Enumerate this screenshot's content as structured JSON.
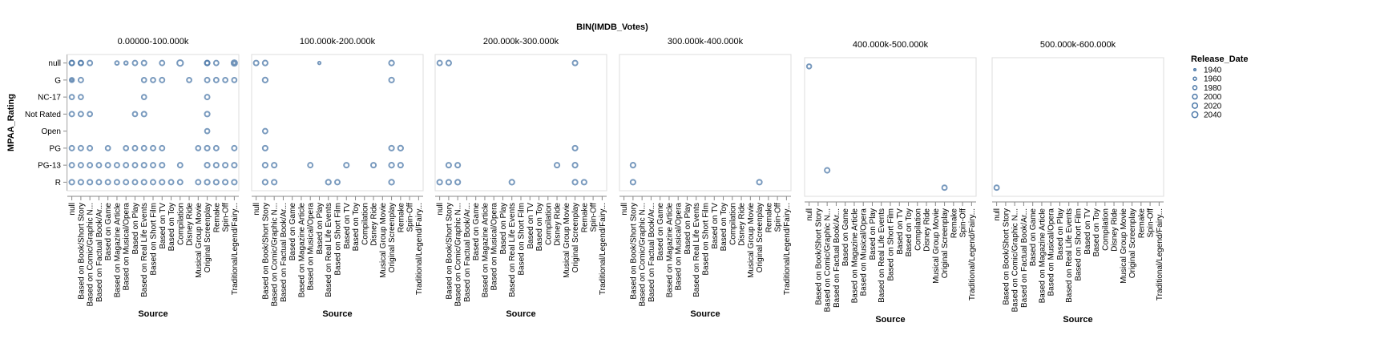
{
  "chart_data": {
    "type": "scatter",
    "column_title": "BIN(IMDB_Votes)",
    "x_title": "Source",
    "y_title": "MPAA_Rating",
    "legend": {
      "title": "Release_Date",
      "values": [
        "1940",
        "1960",
        "1980",
        "2000",
        "2020",
        "2040"
      ],
      "placement": "top-right"
    },
    "size_domain": [
      1940,
      2040
    ],
    "stroke_color": "#4c78a8",
    "ratings": [
      "null",
      "G",
      "NC-17",
      "Not Rated",
      "Open",
      "PG",
      "PG-13",
      "R"
    ],
    "sources": [
      "null",
      "Based on Book/Short Story",
      "Based on Comic/Graphic N...",
      "Based on Factual Book/Ar...",
      "Based on Game",
      "Based on Magazine Article",
      "Based on Musical/Opera",
      "Based on Play",
      "Based on Real Life Events",
      "Based on Short Film",
      "Based on TV",
      "Based on Toy",
      "Compilation",
      "Disney Ride",
      "Musical Group Movie",
      "Original Screenplay",
      "Remake",
      "Spin-Off",
      "Traditional/Legend/Fairy..."
    ],
    "facets": [
      {
        "label": "0.00000-100.000k",
        "points": [
          {
            "source": "null",
            "rating": "null",
            "date": 2008
          },
          {
            "source": "null",
            "rating": "null",
            "date": 1994
          },
          {
            "source": "Based on Book/Short Story",
            "rating": "null",
            "date": 2005
          },
          {
            "source": "Based on Book/Short Story",
            "rating": "null",
            "date": 1990
          },
          {
            "source": "Based on Comic/Graphic N...",
            "rating": "null",
            "date": 2002
          },
          {
            "source": "Based on Magazine Article",
            "rating": "null",
            "date": 1975
          },
          {
            "source": "Based on Musical/Opera",
            "rating": "null",
            "date": 1970
          },
          {
            "source": "Based on Play",
            "rating": "null",
            "date": 2000
          },
          {
            "source": "Based on Real Life Events",
            "rating": "null",
            "date": 2004
          },
          {
            "source": "Based on TV",
            "rating": "null",
            "date": 2000
          },
          {
            "source": "Compilation",
            "rating": "null",
            "date": 2040
          },
          {
            "source": "Original Screenplay",
            "rating": "null",
            "date": 2010
          },
          {
            "source": "Original Screenplay",
            "rating": "null",
            "date": 1990
          },
          {
            "source": "Remake",
            "rating": "null",
            "date": 2000
          },
          {
            "source": "Traditional/Legend/Fairy...",
            "rating": "null",
            "date": 2030
          },
          {
            "source": "Traditional/Legend/Fairy...",
            "rating": "null",
            "date": 1960
          },
          {
            "source": "null",
            "rating": "G",
            "date": 1990
          },
          {
            "source": "null",
            "rating": "G",
            "date": 1940
          },
          {
            "source": "Based on Book/Short Story",
            "rating": "G",
            "date": 2000
          },
          {
            "source": "Based on Real Life Events",
            "rating": "G",
            "date": 1995
          },
          {
            "source": "Based on Short Film",
            "rating": "G",
            "date": 1995
          },
          {
            "source": "Based on TV",
            "rating": "G",
            "date": 2000
          },
          {
            "source": "Disney Ride",
            "rating": "G",
            "date": 1995
          },
          {
            "source": "Original Screenplay",
            "rating": "G",
            "date": 2000
          },
          {
            "source": "Remake",
            "rating": "G",
            "date": 2000
          },
          {
            "source": "Spin-Off",
            "rating": "G",
            "date": 1995
          },
          {
            "source": "Traditional/Legend/Fairy...",
            "rating": "G",
            "date": 1995
          },
          {
            "source": "null",
            "rating": "NC-17",
            "date": 1995
          },
          {
            "source": "Based on Book/Short Story",
            "rating": "NC-17",
            "date": 1995
          },
          {
            "source": "Based on Real Life Events",
            "rating": "NC-17",
            "date": 1995
          },
          {
            "source": "Original Screenplay",
            "rating": "NC-17",
            "date": 2000
          },
          {
            "source": "null",
            "rating": "Not Rated",
            "date": 2000
          },
          {
            "source": "Based on Book/Short Story",
            "rating": "Not Rated",
            "date": 2000
          },
          {
            "source": "Based on Comic/Graphic N...",
            "rating": "Not Rated",
            "date": 1995
          },
          {
            "source": "Based on Play",
            "rating": "Not Rated",
            "date": 1995
          },
          {
            "source": "Based on Real Life Events",
            "rating": "Not Rated",
            "date": 2002
          },
          {
            "source": "Original Screenplay",
            "rating": "Not Rated",
            "date": 2005
          },
          {
            "source": "Original Screenplay",
            "rating": "Open",
            "date": 1995
          },
          {
            "source": "null",
            "rating": "PG",
            "date": 2000
          },
          {
            "source": "Based on Book/Short Story",
            "rating": "PG",
            "date": 2000
          },
          {
            "source": "Based on Comic/Graphic N...",
            "rating": "PG",
            "date": 2000
          },
          {
            "source": "Based on Game",
            "rating": "PG",
            "date": 1995
          },
          {
            "source": "Based on Musical/Opera",
            "rating": "PG",
            "date": 1995
          },
          {
            "source": "Based on Play",
            "rating": "PG",
            "date": 2000
          },
          {
            "source": "Based on Real Life Events",
            "rating": "PG",
            "date": 2000
          },
          {
            "source": "Based on Short Film",
            "rating": "PG",
            "date": 2000
          },
          {
            "source": "Based on TV",
            "rating": "PG",
            "date": 2000
          },
          {
            "source": "Musical Group Movie",
            "rating": "PG",
            "date": 1995
          },
          {
            "source": "Original Screenplay",
            "rating": "PG",
            "date": 2005
          },
          {
            "source": "Remake",
            "rating": "PG",
            "date": 2000
          },
          {
            "source": "Traditional/Legend/Fairy...",
            "rating": "PG",
            "date": 2000
          },
          {
            "source": "null",
            "rating": "PG-13",
            "date": 2000
          },
          {
            "source": "Based on Book/Short Story",
            "rating": "PG-13",
            "date": 2000
          },
          {
            "source": "Based on Comic/Graphic N...",
            "rating": "PG-13",
            "date": 2000
          },
          {
            "source": "Based on Factual Book/Ar...",
            "rating": "PG-13",
            "date": 2000
          },
          {
            "source": "Based on Game",
            "rating": "PG-13",
            "date": 2000
          },
          {
            "source": "Based on Magazine Article",
            "rating": "PG-13",
            "date": 2000
          },
          {
            "source": "Based on Musical/Opera",
            "rating": "PG-13",
            "date": 2000
          },
          {
            "source": "Based on Play",
            "rating": "PG-13",
            "date": 2000
          },
          {
            "source": "Based on Real Life Events",
            "rating": "PG-13",
            "date": 2005
          },
          {
            "source": "Based on Short Film",
            "rating": "PG-13",
            "date": 2000
          },
          {
            "source": "Based on TV",
            "rating": "PG-13",
            "date": 2005
          },
          {
            "source": "Compilation",
            "rating": "PG-13",
            "date": 2000
          },
          {
            "source": "Original Screenplay",
            "rating": "PG-13",
            "date": 2008
          },
          {
            "source": "Remake",
            "rating": "PG-13",
            "date": 2005
          },
          {
            "source": "Spin-Off",
            "rating": "PG-13",
            "date": 2005
          },
          {
            "source": "Traditional/Legend/Fairy...",
            "rating": "PG-13",
            "date": 2005
          },
          {
            "source": "null",
            "rating": "R",
            "date": 2005
          },
          {
            "source": "Based on Book/Short Story",
            "rating": "R",
            "date": 2005
          },
          {
            "source": "Based on Comic/Graphic N...",
            "rating": "R",
            "date": 2005
          },
          {
            "source": "Based on Factual Book/Ar...",
            "rating": "R",
            "date": 2000
          },
          {
            "source": "Based on Game",
            "rating": "R",
            "date": 2000
          },
          {
            "source": "Based on Magazine Article",
            "rating": "R",
            "date": 2000
          },
          {
            "source": "Based on Musical/Opera",
            "rating": "R",
            "date": 2000
          },
          {
            "source": "Based on Play",
            "rating": "R",
            "date": 2000
          },
          {
            "source": "Based on Real Life Events",
            "rating": "R",
            "date": 2005
          },
          {
            "source": "Based on Short Film",
            "rating": "R",
            "date": 2000
          },
          {
            "source": "Based on TV",
            "rating": "R",
            "date": 2005
          },
          {
            "source": "Based on Toy",
            "rating": "R",
            "date": 2000
          },
          {
            "source": "Compilation",
            "rating": "R",
            "date": 2000
          },
          {
            "source": "Musical Group Movie",
            "rating": "R",
            "date": 2000
          },
          {
            "source": "Original Screenplay",
            "rating": "R",
            "date": 2008
          },
          {
            "source": "Remake",
            "rating": "R",
            "date": 2005
          },
          {
            "source": "Spin-Off",
            "rating": "R",
            "date": 2005
          },
          {
            "source": "Traditional/Legend/Fairy...",
            "rating": "R",
            "date": 2005
          }
        ]
      },
      {
        "label": "100.000k-200.000k",
        "points": [
          {
            "source": "null",
            "rating": "null",
            "date": 2005
          },
          {
            "source": "Based on Book/Short Story",
            "rating": "null",
            "date": 2008
          },
          {
            "source": "Based on Play",
            "rating": "null",
            "date": 1950
          },
          {
            "source": "Original Screenplay",
            "rating": "null",
            "date": 2010
          },
          {
            "source": "Based on Book/Short Story",
            "rating": "G",
            "date": 2010
          },
          {
            "source": "Original Screenplay",
            "rating": "G",
            "date": 2005
          },
          {
            "source": "Based on Book/Short Story",
            "rating": "Open",
            "date": 2000
          },
          {
            "source": "Based on Book/Short Story",
            "rating": "PG",
            "date": 2005
          },
          {
            "source": "Original Screenplay",
            "rating": "PG",
            "date": 2005
          },
          {
            "source": "Remake",
            "rating": "PG",
            "date": 2010
          },
          {
            "source": "Based on Book/Short Story",
            "rating": "PG-13",
            "date": 2008
          },
          {
            "source": "Based on Comic/Graphic N...",
            "rating": "PG-13",
            "date": 2005
          },
          {
            "source": "Based on Musical/Opera",
            "rating": "PG-13",
            "date": 2000
          },
          {
            "source": "Based on TV",
            "rating": "PG-13",
            "date": 2005
          },
          {
            "source": "Disney Ride",
            "rating": "PG-13",
            "date": 2005
          },
          {
            "source": "Original Screenplay",
            "rating": "PG-13",
            "date": 2010
          },
          {
            "source": "Remake",
            "rating": "PG-13",
            "date": 2005
          },
          {
            "source": "Based on Book/Short Story",
            "rating": "R",
            "date": 2008
          },
          {
            "source": "Based on Comic/Graphic N...",
            "rating": "R",
            "date": 2005
          },
          {
            "source": "Based on Real Life Events",
            "rating": "R",
            "date": 2008
          },
          {
            "source": "Based on Short Film",
            "rating": "R",
            "date": 2000
          },
          {
            "source": "Original Screenplay",
            "rating": "R",
            "date": 2010
          }
        ]
      },
      {
        "label": "200.000k-300.000k",
        "points": [
          {
            "source": "null",
            "rating": "null",
            "date": 2000
          },
          {
            "source": "Based on Book/Short Story",
            "rating": "null",
            "date": 2008
          },
          {
            "source": "Original Screenplay",
            "rating": "null",
            "date": 2005
          },
          {
            "source": "Original Screenplay",
            "rating": "PG",
            "date": 2005
          },
          {
            "source": "Based on Book/Short Story",
            "rating": "PG-13",
            "date": 2005
          },
          {
            "source": "Based on Comic/Graphic N...",
            "rating": "PG-13",
            "date": 2005
          },
          {
            "source": "Disney Ride",
            "rating": "PG-13",
            "date": 2005
          },
          {
            "source": "Original Screenplay",
            "rating": "PG-13",
            "date": 2008
          },
          {
            "source": "null",
            "rating": "R",
            "date": 2005
          },
          {
            "source": "Based on Book/Short Story",
            "rating": "R",
            "date": 2005
          },
          {
            "source": "Based on Comic/Graphic N...",
            "rating": "R",
            "date": 2008
          },
          {
            "source": "Based on Real Life Events",
            "rating": "R",
            "date": 2008
          },
          {
            "source": "Original Screenplay",
            "rating": "R",
            "date": 2008
          },
          {
            "source": "Remake",
            "rating": "R",
            "date": 2005
          }
        ]
      },
      {
        "label": "300.000k-400.000k",
        "points": [
          {
            "source": "Based on Book/Short Story",
            "rating": "PG-13",
            "date": 2008
          },
          {
            "source": "Based on Book/Short Story",
            "rating": "R",
            "date": 2005
          },
          {
            "source": "Original Screenplay",
            "rating": "R",
            "date": 2005
          }
        ]
      },
      {
        "label": "400.000k-500.000k",
        "points": [
          {
            "source": "null",
            "rating": "null",
            "date": 1990
          },
          {
            "source": "Based on Comic/Graphic N...",
            "rating": "PG-13",
            "date": 2005
          },
          {
            "source": "Original Screenplay",
            "rating": "R",
            "date": 2000
          }
        ]
      },
      {
        "label": "500.000k-600.000k",
        "points": [
          {
            "source": "null",
            "rating": "R",
            "date": 2000
          }
        ]
      }
    ]
  }
}
